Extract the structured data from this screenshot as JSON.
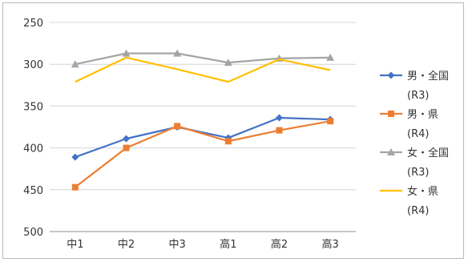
{
  "chart_data": {
    "type": "line",
    "categories": [
      "中1",
      "中2",
      "中3",
      "高1",
      "高2",
      "高3"
    ],
    "y_axis": {
      "min": 250,
      "max": 500,
      "step": 50,
      "reversed": true
    },
    "yticks": [
      "250",
      "300",
      "350",
      "400",
      "450",
      "500"
    ],
    "grid": true,
    "legend_position": "right",
    "series": [
      {
        "name": "男・全国",
        "name_sub": "(R3)",
        "color": "#4472C4",
        "marker": "diamond",
        "values": [
          411,
          389,
          375,
          388,
          364,
          366
        ]
      },
      {
        "name": "男・県",
        "name_sub": "(R4)",
        "color": "#ED7D31",
        "marker": "square",
        "values": [
          447,
          400,
          374,
          392,
          379,
          368
        ]
      },
      {
        "name": "女・全国",
        "name_sub": "(R3)",
        "color": "#A5A5A5",
        "marker": "triangle",
        "values": [
          300,
          287,
          287,
          298,
          293,
          292
        ]
      },
      {
        "name": "女・県",
        "name_sub": "(R4)",
        "color": "#FFC000",
        "marker": "none",
        "values": [
          321,
          292,
          306,
          321,
          294,
          307
        ]
      }
    ]
  }
}
